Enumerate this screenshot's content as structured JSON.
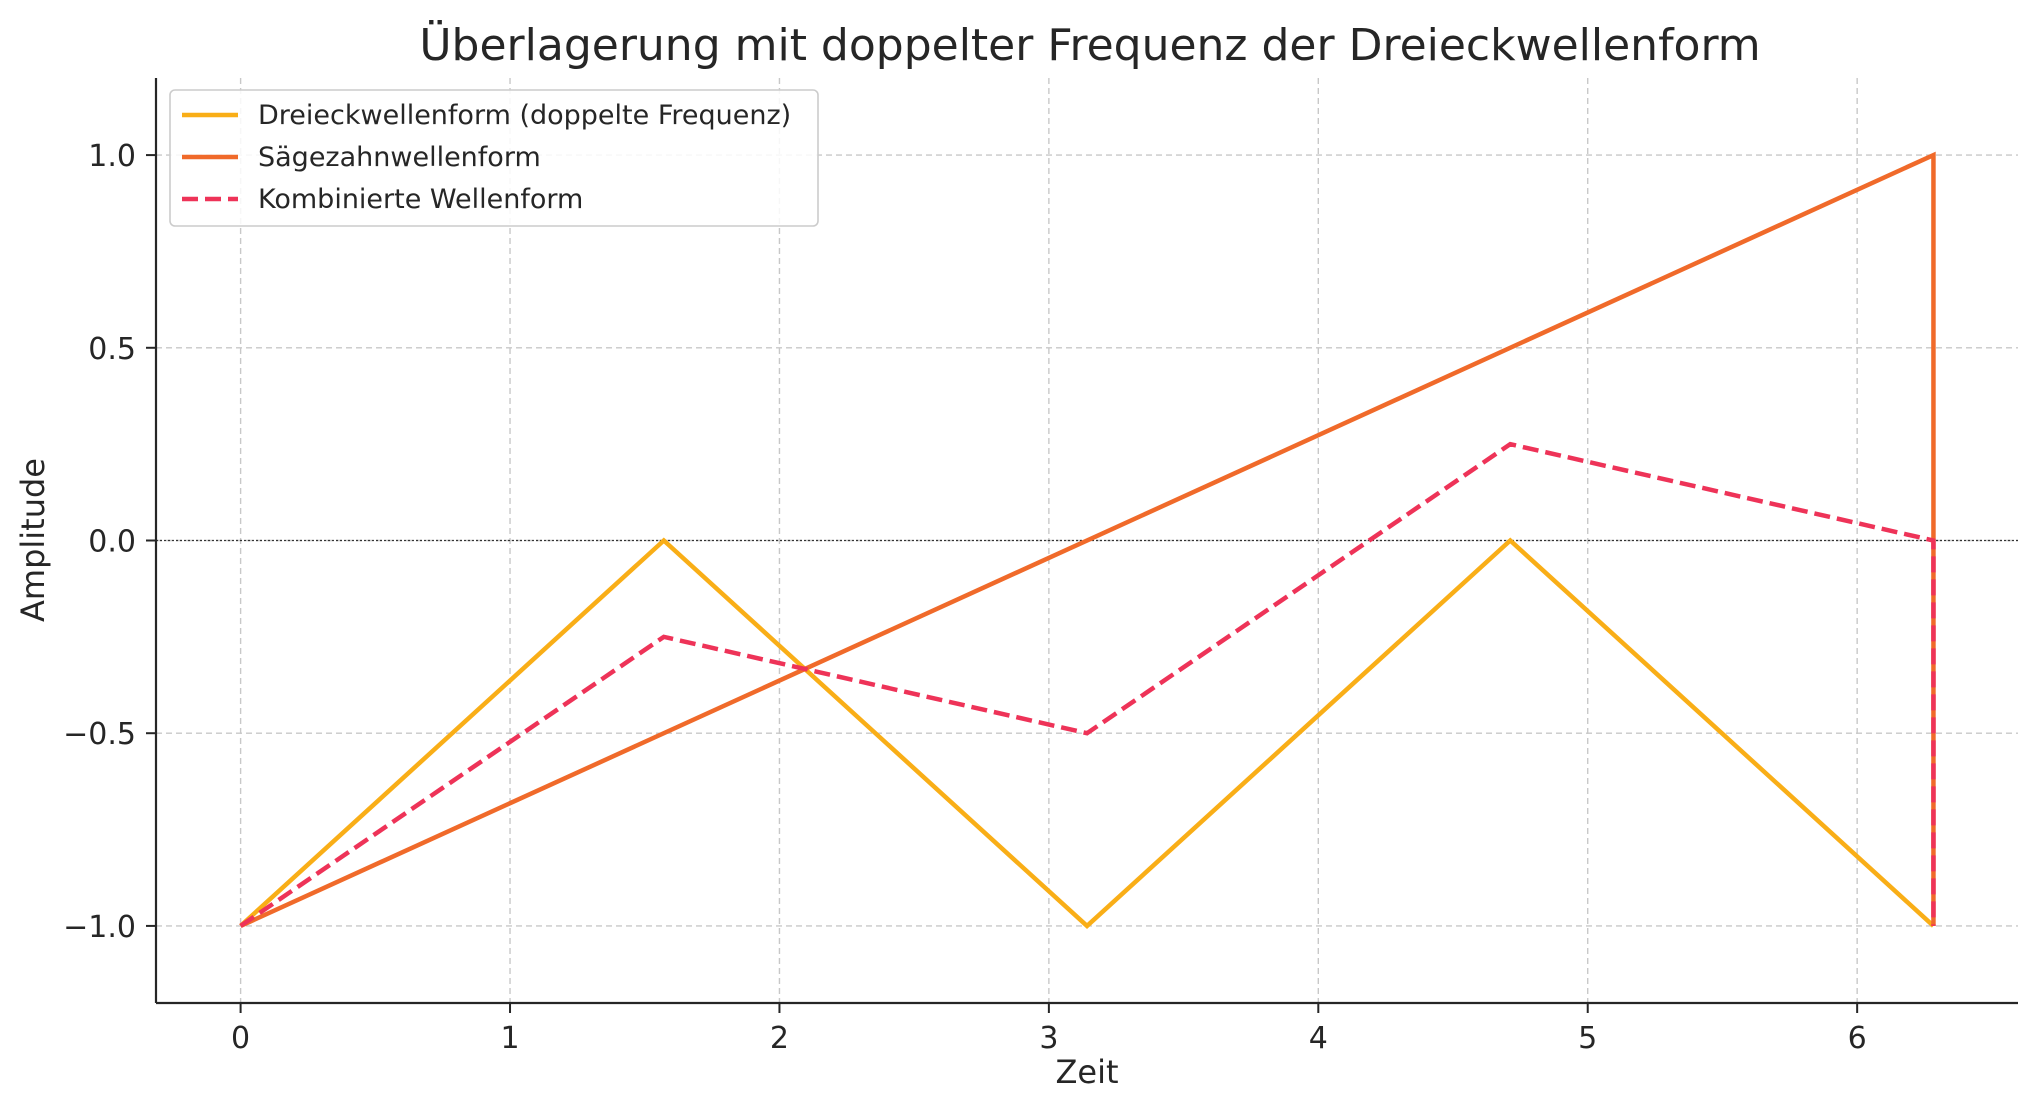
{
  "chart_data": {
    "type": "line",
    "title": "Überlagerung mit doppelter Frequenz der Dreieckwellenform",
    "xlabel": "Zeit",
    "ylabel": "Amplitude",
    "xlim": [
      -0.314,
      6.597
    ],
    "ylim": [
      -1.2,
      1.2
    ],
    "grid": true,
    "legend_position": "top-left",
    "x_ticks": [
      0,
      1,
      2,
      3,
      4,
      5,
      6
    ],
    "x_tick_labels": [
      "0",
      "1",
      "2",
      "3",
      "4",
      "5",
      "6"
    ],
    "y_ticks": [
      -1.0,
      -0.5,
      0.0,
      0.5,
      1.0
    ],
    "y_tick_labels": [
      "−1.0",
      "−0.5",
      "0.0",
      "0.5",
      "1.0"
    ],
    "reference_line_y": 0,
    "series": [
      {
        "name": "Dreieckwellenform (doppelte Frequenz)",
        "color": "#F9AE17",
        "dash": "solid",
        "x": [
          0,
          1.5708,
          3.1416,
          4.7124,
          6.2832
        ],
        "y": [
          -1,
          0,
          -1,
          0,
          -1
        ]
      },
      {
        "name": "Sägezahnwellenform",
        "color": "#F06A2A",
        "dash": "solid",
        "x": [
          0,
          6.2832,
          6.2832
        ],
        "y": [
          -1,
          1,
          -1
        ]
      },
      {
        "name": "Kombinierte Wellenform",
        "color": "#EE3358",
        "dash": "dashed",
        "x": [
          0,
          1.5708,
          3.1416,
          4.7124,
          6.2832,
          6.2832
        ],
        "y": [
          -1,
          -0.25,
          -0.5,
          0.25,
          0,
          -1
        ]
      }
    ]
  }
}
